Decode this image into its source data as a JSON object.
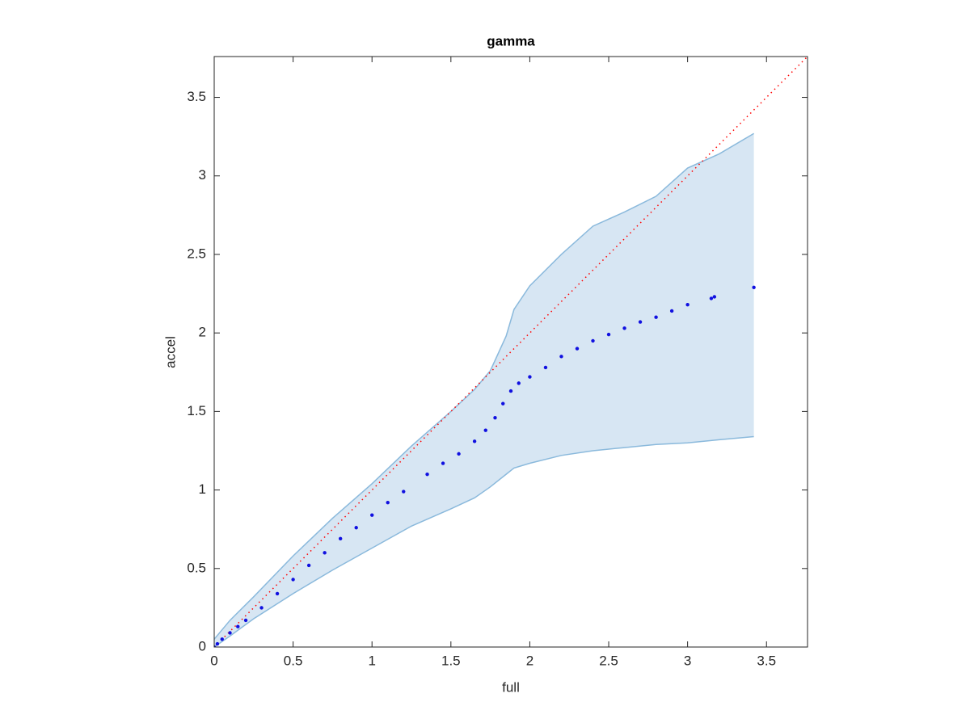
{
  "chart_data": {
    "type": "scatter",
    "title": "gamma",
    "x_label": "full",
    "y_label": "accel",
    "xlim": [
      0,
      3.76
    ],
    "ylim": [
      0,
      3.76
    ],
    "xticks": [
      0,
      0.5,
      1,
      1.5,
      2,
      2.5,
      3,
      3.5
    ],
    "yticks": [
      0,
      0.5,
      1,
      1.5,
      2,
      2.5,
      3,
      3.5
    ],
    "series": [
      {
        "type": "band",
        "color": "#8ab9dc",
        "fill": "#d7e6f3",
        "x": [
          0,
          0.1,
          0.25,
          0.5,
          0.75,
          1,
          1.25,
          1.5,
          1.65,
          1.75,
          1.85,
          1.9,
          2,
          2.2,
          2.4,
          2.6,
          2.8,
          3,
          3.2,
          3.42
        ],
        "upper": [
          0.05,
          0.17,
          0.32,
          0.58,
          0.82,
          1.04,
          1.28,
          1.5,
          1.64,
          1.76,
          1.98,
          2.15,
          2.3,
          2.5,
          2.68,
          2.77,
          2.87,
          3.05,
          3.14,
          3.27
        ],
        "lower": [
          0,
          0.07,
          0.18,
          0.34,
          0.49,
          0.63,
          0.77,
          0.88,
          0.95,
          1.02,
          1.1,
          1.14,
          1.17,
          1.22,
          1.25,
          1.27,
          1.29,
          1.3,
          1.32,
          1.34
        ]
      },
      {
        "type": "line",
        "color": "#ff0000",
        "dotted": true,
        "x": [
          0,
          3.76
        ],
        "values": [
          0,
          3.76
        ]
      },
      {
        "type": "scatter",
        "color": "#1010e0",
        "x": [
          0,
          0.02,
          0.05,
          0.1,
          0.15,
          0.2,
          0.3,
          0.4,
          0.5,
          0.6,
          0.7,
          0.8,
          0.9,
          1.0,
          1.1,
          1.2,
          1.35,
          1.45,
          1.55,
          1.65,
          1.72,
          1.78,
          1.83,
          1.88,
          1.93,
          2.0,
          2.1,
          2.2,
          2.3,
          2.4,
          2.5,
          2.6,
          2.7,
          2.8,
          2.9,
          3.0,
          3.15,
          3.17,
          3.42
        ],
        "values": [
          0,
          0.02,
          0.05,
          0.09,
          0.13,
          0.17,
          0.25,
          0.34,
          0.43,
          0.52,
          0.6,
          0.69,
          0.76,
          0.84,
          0.92,
          0.99,
          1.1,
          1.17,
          1.23,
          1.31,
          1.38,
          1.46,
          1.55,
          1.63,
          1.68,
          1.72,
          1.78,
          1.85,
          1.9,
          1.95,
          1.99,
          2.03,
          2.07,
          2.1,
          2.14,
          2.18,
          2.22,
          2.23,
          2.29
        ]
      }
    ]
  }
}
